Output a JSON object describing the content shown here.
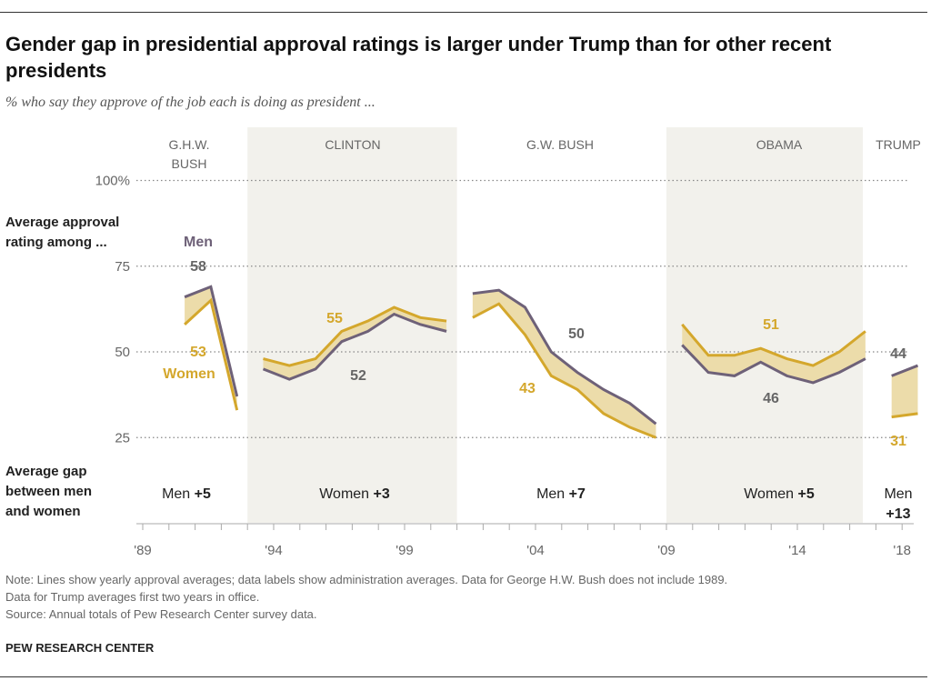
{
  "title": "Gender gap in presidential approval ratings is larger under Trump than for other recent presidents",
  "subtitle": "% who say they approve of the job each is doing as president ...",
  "chart_data": {
    "type": "line",
    "ylim": [
      25,
      100
    ],
    "yticks": [
      "100%",
      "75",
      "50",
      "25"
    ],
    "ytick_values": [
      100,
      75,
      50,
      25
    ],
    "xticks": [
      "'89",
      "'94",
      "'99",
      "'04",
      "'09",
      "'14",
      "'18"
    ],
    "xtick_values": [
      1989,
      1994,
      1999,
      2004,
      2009,
      2014,
      2018
    ],
    "grid": true,
    "colors": {
      "men": "#6e6178",
      "women": "#d4a72c",
      "gap_fill": "#ecdcaa",
      "band": "#f2f1ec"
    },
    "row_label_avg": "Average approval rating among ...",
    "row_label_gap": "Average gap between men and women",
    "series_labels": {
      "men": "Men",
      "women": "Women"
    },
    "presidencies": [
      {
        "name": "G.H.W. BUSH",
        "shaded": false,
        "years": [
          1990,
          1991,
          1992
        ],
        "men": [
          66,
          69,
          37
        ],
        "women": [
          58,
          65,
          33
        ],
        "men_avg": "58",
        "women_avg": "53",
        "gap_prefix": "Men",
        "gap": "+5"
      },
      {
        "name": "CLINTON",
        "shaded": true,
        "years": [
          1993,
          1994,
          1995,
          1996,
          1997,
          1998,
          1999,
          2000
        ],
        "men": [
          45,
          42,
          45,
          53,
          56,
          61,
          58,
          56
        ],
        "women": [
          48,
          46,
          48,
          56,
          59,
          63,
          60,
          59
        ],
        "men_avg": "52",
        "women_avg": "55",
        "gap_prefix": "Women",
        "gap": "+3"
      },
      {
        "name": "G.W. BUSH",
        "shaded": false,
        "years": [
          2001,
          2002,
          2003,
          2004,
          2005,
          2006,
          2007,
          2008
        ],
        "men": [
          67,
          68,
          63,
          50,
          44,
          39,
          35,
          29
        ],
        "women": [
          60,
          64,
          55,
          43,
          39,
          32,
          28,
          25
        ],
        "men_avg": "50",
        "women_avg": "43",
        "gap_prefix": "Men",
        "gap": "+7"
      },
      {
        "name": "OBAMA",
        "shaded": true,
        "years": [
          2009,
          2010,
          2011,
          2012,
          2013,
          2014,
          2015,
          2016
        ],
        "men": [
          52,
          44,
          43,
          47,
          43,
          41,
          44,
          48
        ],
        "women": [
          58,
          49,
          49,
          51,
          48,
          46,
          50,
          56
        ],
        "men_avg": "46",
        "women_avg": "51",
        "gap_prefix": "Women",
        "gap": "+5"
      },
      {
        "name": "TRUMP",
        "shaded": false,
        "years": [
          2017,
          2018
        ],
        "men": [
          43,
          46
        ],
        "women": [
          31,
          32
        ],
        "men_avg": "44",
        "women_avg": "31",
        "gap_prefix": "Men",
        "gap": "+13"
      }
    ]
  },
  "notes": [
    "Note: Lines show yearly approval averages; data labels show administration averages. Data for George H.W. Bush does not include 1989.",
    "Data for Trump averages first two years in office.",
    "Source: Annual totals of Pew Research Center survey data."
  ],
  "brand": "PEW RESEARCH CENTER"
}
